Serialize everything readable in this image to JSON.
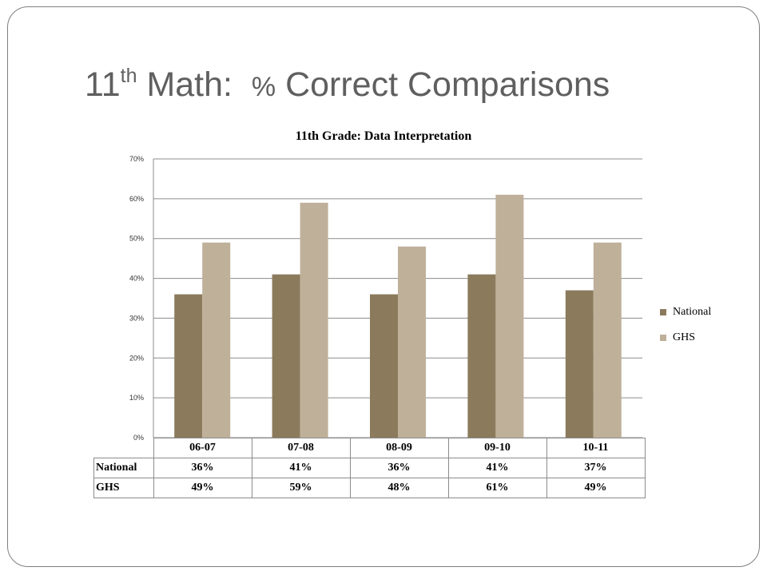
{
  "slide": {
    "title_main": "11",
    "title_sup": "th",
    "title_rest": " Math:  ",
    "title_pct": "%",
    "title_end": " Correct Comparisons"
  },
  "chart_data": {
    "type": "bar",
    "title": "11th Grade: Data Interpretation",
    "categories": [
      "06-07",
      "07-08",
      "08-09",
      "09-10",
      "10-11"
    ],
    "series": [
      {
        "name": "National",
        "values": [
          36,
          41,
          36,
          41,
          37
        ],
        "color": "#8b7b5c",
        "labels": [
          "36%",
          "41%",
          "36%",
          "41%",
          "37%"
        ]
      },
      {
        "name": "GHS",
        "values": [
          49,
          59,
          48,
          61,
          49
        ],
        "color": "#bfb09a",
        "labels": [
          "49%",
          "59%",
          "48%",
          "61%",
          "49%"
        ]
      }
    ],
    "ylim": [
      0,
      70
    ],
    "yticks": [
      "0%",
      "10%",
      "20%",
      "30%",
      "40%",
      "50%",
      "60%",
      "70%"
    ],
    "grid": true,
    "legend": "right",
    "data_table": true
  }
}
